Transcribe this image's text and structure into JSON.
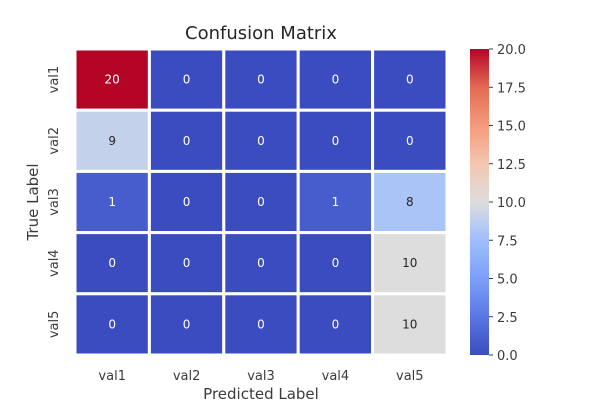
{
  "chart_data": {
    "type": "heatmap",
    "title": "Confusion Matrix",
    "xlabel": "Predicted Label",
    "ylabel": "True Label",
    "x_categories": [
      "val1",
      "val2",
      "val3",
      "val4",
      "val5"
    ],
    "y_categories": [
      "val1",
      "val2",
      "val3",
      "val4",
      "val5"
    ],
    "values": [
      [
        20,
        0,
        0,
        0,
        0
      ],
      [
        9,
        0,
        0,
        0,
        0
      ],
      [
        1,
        0,
        0,
        1,
        8
      ],
      [
        0,
        0,
        0,
        0,
        10
      ],
      [
        0,
        0,
        0,
        0,
        10
      ]
    ],
    "value_range": [
      0,
      20
    ],
    "colormap": "coolwarm",
    "colorbar_ticks": [
      "0.0",
      "2.5",
      "5.0",
      "7.5",
      "10.0",
      "12.5",
      "15.0",
      "17.5",
      "20.0"
    ],
    "cell_border_color": "#ffffff"
  }
}
